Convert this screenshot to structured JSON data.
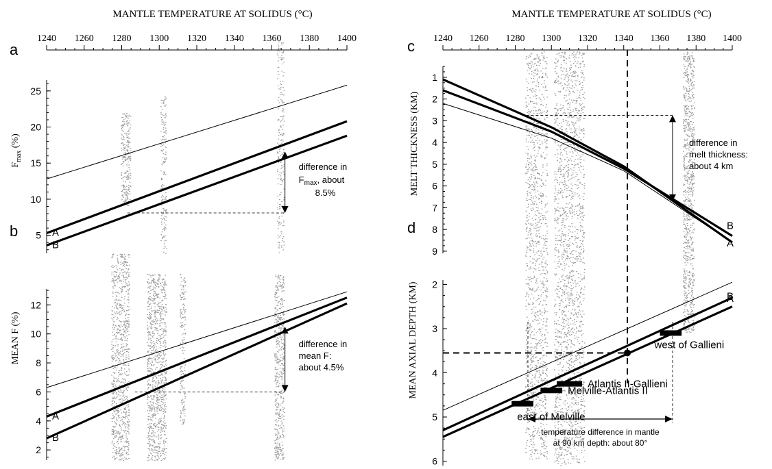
{
  "figure": {
    "top_axis_title": "MANTLE TEMPERATURE AT SOLIDUS (°C)",
    "top_ticks": [
      1240,
      1260,
      1280,
      1300,
      1320,
      1340,
      1360,
      1380,
      1400
    ]
  },
  "chart_data": [
    {
      "panel": "a",
      "type": "line",
      "ylabel_main": "F",
      "ylabel_sub": "max",
      "ylabel_tail": " (%)",
      "ylim": [
        2.5,
        26.5
      ],
      "y_ticks": [
        5,
        10,
        15,
        20,
        25
      ],
      "series": [
        {
          "label": "",
          "weight": "thin",
          "x": [
            1240,
            1400
          ],
          "y": [
            12.8,
            25.8
          ]
        },
        {
          "label": "A",
          "weight": "thick",
          "x": [
            1240,
            1400
          ],
          "y": [
            5.3,
            20.8
          ]
        },
        {
          "label": "B",
          "weight": "thick",
          "x": [
            1240,
            1400
          ],
          "y": [
            3.6,
            18.8
          ]
        }
      ],
      "annotation": {
        "lines": [
          "difference in",
          "F",
          "max",
          ", about",
          "8.5%"
        ],
        "x": 1367,
        "y_from": 16.6,
        "y_to": 8.1
      },
      "guide": {
        "x_from": 1283,
        "x_to": 1367,
        "y": 8.1
      }
    },
    {
      "panel": "b",
      "type": "line",
      "ylabel": "MEAN F (%)",
      "ylim": [
        1.3,
        13.1
      ],
      "y_ticks": [
        2,
        4,
        6,
        8,
        10,
        12
      ],
      "series": [
        {
          "label": "",
          "weight": "thin",
          "x": [
            1240,
            1400
          ],
          "y": [
            6.3,
            12.9
          ]
        },
        {
          "label": "A",
          "weight": "thick",
          "x": [
            1240,
            1400
          ],
          "y": [
            4.3,
            12.5
          ]
        },
        {
          "label": "B",
          "weight": "thick",
          "x": [
            1240,
            1400
          ],
          "y": [
            2.8,
            12.1
          ]
        }
      ],
      "annotation": {
        "lines": [
          "difference in",
          "mean F:",
          "about 4.5%"
        ],
        "x": 1367,
        "y_from": 10.5,
        "y_to": 6.0
      },
      "guide": {
        "x_from": 1287,
        "x_to": 1367,
        "y": 6.0
      }
    },
    {
      "panel": "c",
      "type": "line",
      "ylabel": "MELT THICKNESS (KM)",
      "ylim": [
        0.5,
        9.1
      ],
      "y_ticks": [
        1,
        2,
        3,
        4,
        5,
        6,
        7,
        8,
        9
      ],
      "series": [
        {
          "label": "",
          "weight": "thin",
          "x": [
            1240,
            1300,
            1340,
            1400
          ],
          "y": [
            2.2,
            3.8,
            5.3,
            8.6
          ]
        },
        {
          "label": "A",
          "weight": "thick",
          "x": [
            1240,
            1300,
            1340,
            1400
          ],
          "y": [
            1.1,
            3.3,
            5.1,
            8.6
          ]
        },
        {
          "label": "B",
          "weight": "thick",
          "x": [
            1240,
            1300,
            1340,
            1400
          ],
          "y": [
            1.6,
            3.5,
            5.2,
            8.3
          ]
        }
      ],
      "annotation": {
        "lines": [
          "difference in",
          "melt thickness:",
          "about 4 km"
        ],
        "x": 1367,
        "y_from": 2.75,
        "y_to": 6.7
      },
      "guide": {
        "x_from": 1286,
        "x_to": 1367,
        "y": 2.75
      },
      "vertical_dashed_x": 1342
    },
    {
      "panel": "d",
      "type": "line",
      "ylabel": "MEAN AXIAL DEPTH (KM)",
      "ylim": [
        1.9,
        6.1
      ],
      "y_ticks": [
        2,
        3,
        4,
        5,
        6
      ],
      "series": [
        {
          "label": "",
          "weight": "thin",
          "x": [
            1240,
            1400
          ],
          "y": [
            4.85,
            1.95
          ]
        },
        {
          "label": "A",
          "weight": "thick",
          "x": [
            1240,
            1400
          ],
          "y": [
            5.3,
            2.3
          ]
        },
        {
          "label": "B",
          "weight": "thick",
          "x": [
            1240,
            1400
          ],
          "y": [
            5.45,
            2.5
          ]
        }
      ],
      "segments": [
        {
          "label": "west of Gallieni",
          "x1": 1360,
          "x2": 1372,
          "y": 3.1
        },
        {
          "label": "Atlantis II-Gallieni",
          "x1": 1303,
          "x2": 1317,
          "y": 4.25
        },
        {
          "label": "Melville-Atlantis II",
          "x1": 1294,
          "x2": 1306,
          "y": 4.4
        },
        {
          "label": "east of Melville",
          "x1": 1278,
          "x2": 1290,
          "y": 4.7
        }
      ],
      "point": {
        "x": 1342,
        "y": 3.55
      },
      "annotation": {
        "lines": [
          "temperature difference in mantle",
          "at 90 km depth: about 80°"
        ],
        "x_from": 1287,
        "x_to": 1367
      }
    }
  ]
}
